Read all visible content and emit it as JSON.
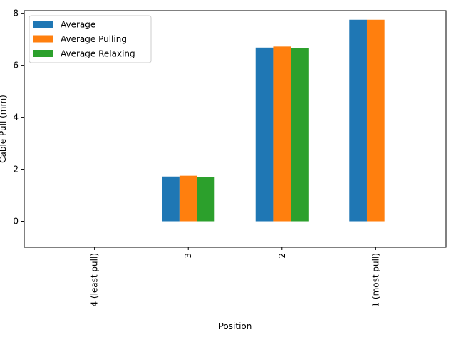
{
  "chart_data": {
    "type": "bar",
    "title": "",
    "xlabel": "Position",
    "ylabel": "Cable Pull (mm)",
    "categories": [
      "4 (least pull)",
      "3",
      "2",
      "1 (most pull)"
    ],
    "series": [
      {
        "name": "Average",
        "color": "#1f77b4",
        "values": [
          null,
          1.72,
          6.68,
          7.75
        ]
      },
      {
        "name": "Average Pulling",
        "color": "#ff7f0e",
        "values": [
          null,
          1.75,
          6.72,
          7.75
        ]
      },
      {
        "name": "Average Relaxing",
        "color": "#2ca02c",
        "values": [
          null,
          1.7,
          6.65,
          null
        ]
      }
    ],
    "ylim": [
      -1,
      8.1
    ],
    "yticks": [
      0,
      2,
      4,
      6,
      8
    ],
    "ytick_labels": [
      "0",
      "2",
      "4",
      "6",
      "8"
    ],
    "xtick_rotation": "vertical",
    "grid": false,
    "legend": "upper-left"
  }
}
